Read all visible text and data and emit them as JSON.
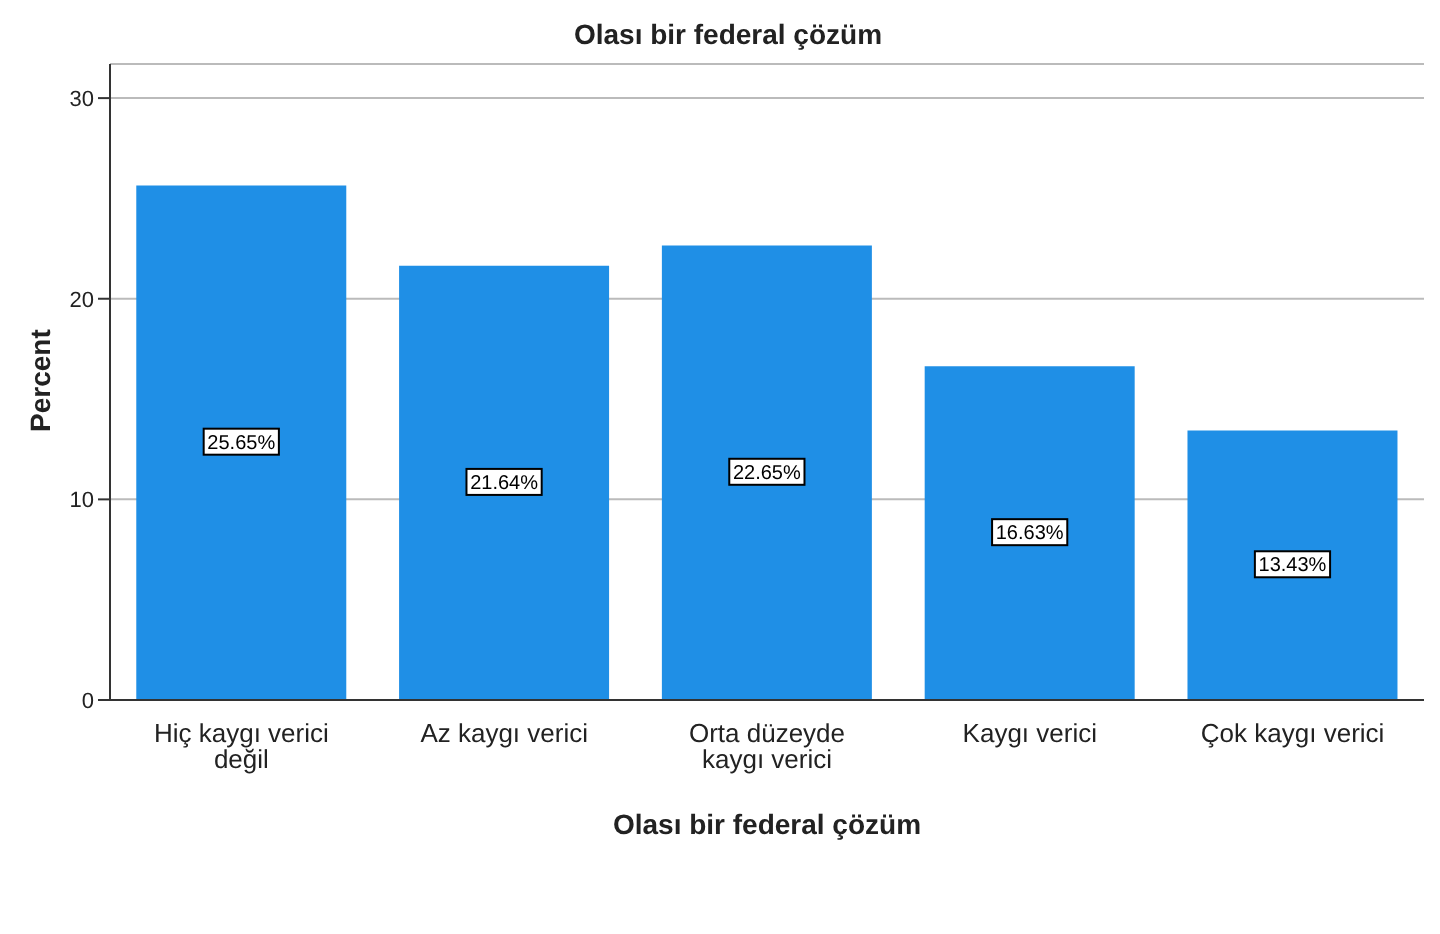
{
  "chart_data": {
    "type": "bar",
    "title": "Olası bir federal çözüm",
    "xlabel": "Olası bir federal çözüm",
    "ylabel": "Percent",
    "categories": [
      "Hiç kaygı verici değil",
      "Az kaygı verici",
      "Orta düzeyde kaygı verici",
      "Kaygı verici",
      "Çok kaygı verici"
    ],
    "values": [
      25.65,
      21.64,
      22.65,
      16.63,
      13.43
    ],
    "value_labels": [
      "25.65%",
      "21.64%",
      "22.65%",
      "16.63%",
      "13.43%"
    ],
    "color": "#1f8fe6",
    "ylim": [
      0,
      31.7
    ],
    "yticks": [
      0,
      10,
      20,
      30
    ],
    "grid": "y"
  }
}
